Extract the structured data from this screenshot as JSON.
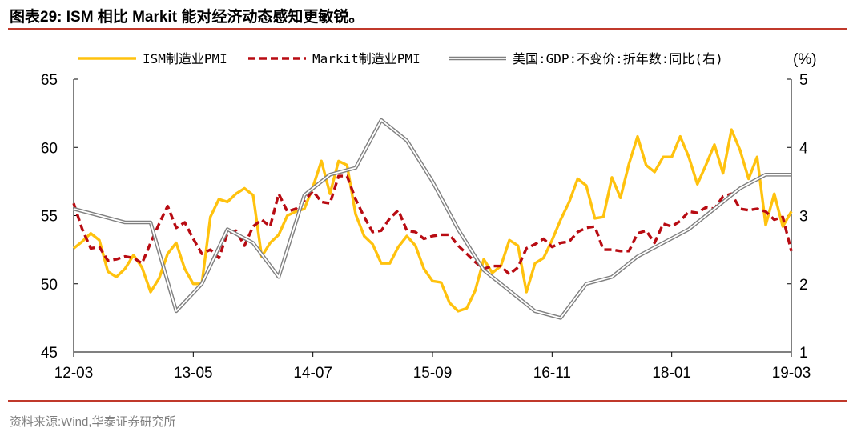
{
  "header": {
    "title": "图表29:  ISM 相比 Markit 能对经济动态感知更敏锐。"
  },
  "footer": {
    "source": "资料来源:Wind,华泰证券研究所"
  },
  "chart_data": {
    "type": "line",
    "title": "图表29:  ISM 相比 Markit 能对经济动态感知更敏锐。",
    "x_tick_labels": [
      "12-03",
      "13-05",
      "14-07",
      "15-09",
      "16-11",
      "18-01",
      "19-03"
    ],
    "x_range_months": [
      0,
      84
    ],
    "y_left": {
      "range": [
        45,
        65
      ],
      "ticks": [
        "45",
        "50",
        "55",
        "60",
        "65"
      ]
    },
    "y_right": {
      "range": [
        1,
        5
      ],
      "ticks": [
        "1",
        "2",
        "3",
        "4",
        "5"
      ],
      "unit_label": "(%)"
    },
    "legend_position": "top",
    "series": [
      {
        "name": "ISM制造业PMI",
        "axis": "left",
        "color": "#FFC20E",
        "style": "solid",
        "x_start": 0,
        "values": [
          52.6,
          53.1,
          53.7,
          53.2,
          50.9,
          50.5,
          51.1,
          52.1,
          51.2,
          49.4,
          50.4,
          52.2,
          53.0,
          51.1,
          50.0,
          50.0,
          54.9,
          56.2,
          56.0,
          56.6,
          57.0,
          56.5,
          52.0,
          53.0,
          53.6,
          55.0,
          55.3,
          55.5,
          57.1,
          59.0,
          56.6,
          59.0,
          58.7,
          55.1,
          53.5,
          52.9,
          51.5,
          51.5,
          52.7,
          53.5,
          52.8,
          51.1,
          50.2,
          50.1,
          48.6,
          48.0,
          48.2,
          49.5,
          51.8,
          50.8,
          51.3,
          53.2,
          52.8,
          49.4,
          51.5,
          51.9,
          53.2,
          54.7,
          56.0,
          57.7,
          57.2,
          54.8,
          54.9,
          57.8,
          56.3,
          58.8,
          60.8,
          58.7,
          58.2,
          59.3,
          59.3,
          60.8,
          59.3,
          57.3,
          58.7,
          60.2,
          58.1,
          61.3,
          59.8,
          57.7,
          59.3,
          54.3,
          56.6,
          54.2,
          55.3
        ]
      },
      {
        "name": "Markit制造业PMI",
        "axis": "left",
        "color": "#B80B12",
        "style": "dashed",
        "x_start": 0,
        "values": [
          55.9,
          54.0,
          52.6,
          52.7,
          51.7,
          51.8,
          52.0,
          51.9,
          51.5,
          53.0,
          54.4,
          55.7,
          54.1,
          54.5,
          53.3,
          52.2,
          52.5,
          51.9,
          53.7,
          53.9,
          52.8,
          54.2,
          54.7,
          54.2,
          56.6,
          55.3,
          55.5,
          56.1,
          56.8,
          56.0,
          55.9,
          57.9,
          57.9,
          56.2,
          54.9,
          53.8,
          53.9,
          54.8,
          55.4,
          53.9,
          53.8,
          53.3,
          53.5,
          53.6,
          53.6,
          52.8,
          52.2,
          51.6,
          51.1,
          51.3,
          51.3,
          50.7,
          51.2,
          52.6,
          52.9,
          53.3,
          52.7,
          53.0,
          53.1,
          53.8,
          54.1,
          54.2,
          52.5,
          52.5,
          52.4,
          52.4,
          53.7,
          53.9,
          53.0,
          54.4,
          54.2,
          54.6,
          55.3,
          55.2,
          55.6,
          55.5,
          56.4,
          56.6,
          55.5,
          55.4,
          55.5,
          55.3,
          54.7,
          54.9,
          52.4
        ]
      },
      {
        "name": "美国:GDP:不变价:折年数:同比(右)",
        "axis": "right",
        "color": "#808080",
        "style": "double",
        "x_start": 0,
        "x_step": 3,
        "values": [
          3.1,
          3.0,
          2.9,
          2.9,
          1.6,
          2.0,
          2.8,
          2.6,
          2.1,
          3.3,
          3.6,
          3.7,
          4.4,
          4.1,
          3.5,
          2.8,
          2.2,
          1.9,
          1.6,
          1.5,
          2.0,
          2.1,
          2.4,
          2.6,
          2.8,
          3.1,
          3.4,
          3.6,
          3.6
        ]
      }
    ]
  },
  "colors": {
    "accent_red": "#C0392B",
    "ism": "#FFC20E",
    "markit": "#B80B12",
    "gdp": "#808080"
  }
}
